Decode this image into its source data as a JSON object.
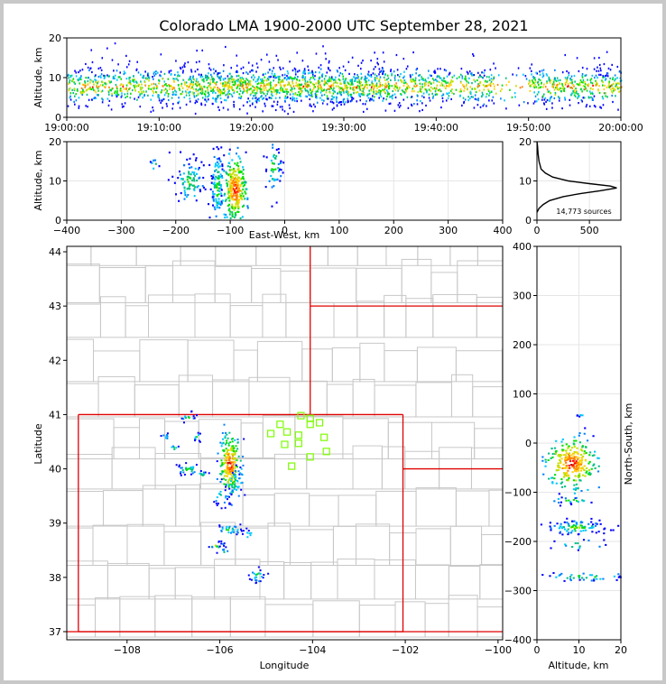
{
  "title": "Colorado LMA 1900-2000 UTC September 28, 2021",
  "colors": {
    "state_border": "#e00000",
    "county_border": "#c8c8c8",
    "station": "#7cfc00",
    "grid": "#e6e6e6"
  },
  "chart_data": [
    {
      "type": "heatmap",
      "panel": "time-altitude",
      "ylabel": "Altitude, km",
      "ylim": [
        0,
        20
      ],
      "yticks": [
        "0",
        "10",
        "20"
      ],
      "xticks": [
        "19:00:00",
        "19:10:00",
        "19:20:00",
        "19:30:00",
        "19:40:00",
        "19:50:00",
        "20:00:00"
      ],
      "xlim_minutes": [
        0,
        60
      ],
      "bands": [
        {
          "t_start": 0.0,
          "t_end": 60.0,
          "alt_center": 8,
          "alt_spread": 3.5
        }
      ]
    },
    {
      "type": "heatmap",
      "panel": "east-west-altitude",
      "xlabel": "East-West, km",
      "ylabel": "Altitude, km",
      "xlim": [
        -400,
        400
      ],
      "ylim": [
        0,
        20
      ],
      "xticks": [
        "−400",
        "−300",
        "−200",
        "−100",
        "0",
        "100",
        "200",
        "300",
        "400"
      ],
      "yticks": [
        "0",
        "10",
        "20"
      ],
      "clusters": [
        {
          "x": -240,
          "alt": 14,
          "sx": 5,
          "sa": 1,
          "n": 8
        },
        {
          "x": -175,
          "alt": 10,
          "sx": 14,
          "sa": 3,
          "n": 90
        },
        {
          "x": -125,
          "alt": 9,
          "sx": 6,
          "sa": 5,
          "n": 110
        },
        {
          "x": -92,
          "alt": 8,
          "sx": 10,
          "sa": 4,
          "n": 260
        },
        {
          "x": -22,
          "alt": 14,
          "sx": 8,
          "sa": 4,
          "n": 50
        }
      ]
    },
    {
      "type": "line",
      "panel": "altitude-histogram",
      "annotation": "14,773 sources",
      "xlim": [
        0,
        800
      ],
      "ylim": [
        0,
        20
      ],
      "xticks": [
        "0",
        "500"
      ],
      "yticks": [
        "0",
        "10",
        "20"
      ],
      "x": [
        0,
        20,
        60,
        120,
        250,
        420,
        600,
        760,
        700,
        500,
        300,
        150,
        80,
        40,
        20,
        10,
        5,
        0
      ],
      "y": [
        2,
        3,
        4,
        5,
        6,
        6.8,
        7.5,
        8.2,
        8.7,
        9.3,
        10,
        11,
        12,
        13,
        15,
        17,
        19,
        20
      ]
    },
    {
      "type": "scatter",
      "panel": "plan-view",
      "xlabel": "Longitude",
      "ylabel": "Latitude",
      "xlim": [
        -109.3,
        -99.9
      ],
      "ylim": [
        36.85,
        44.1
      ],
      "xticks": [
        {
          "v": -108,
          "label": "−108"
        },
        {
          "v": -106,
          "label": "−106"
        },
        {
          "v": -104,
          "label": "−104"
        },
        {
          "v": -102,
          "label": "−102"
        },
        {
          "v": -100,
          "label": "−100"
        }
      ],
      "yticks": [
        "37",
        "38",
        "39",
        "40",
        "41",
        "42",
        "43",
        "44"
      ],
      "clusters": [
        {
          "lon": -105.8,
          "lat": 40.1,
          "slon": 0.1,
          "slat": 0.25,
          "n": 220
        },
        {
          "lon": -105.7,
          "lat": 39.75,
          "slon": 0.12,
          "slat": 0.15,
          "n": 40
        },
        {
          "lon": -106.7,
          "lat": 40.0,
          "slon": 0.15,
          "slat": 0.05,
          "n": 30
        },
        {
          "lon": -106.0,
          "lat": 39.5,
          "slon": 0.1,
          "slat": 0.1,
          "n": 20
        },
        {
          "lon": -105.8,
          "lat": 38.9,
          "slon": 0.15,
          "slat": 0.05,
          "n": 30
        },
        {
          "lon": -105.2,
          "lat": 38.05,
          "slon": 0.1,
          "slat": 0.07,
          "n": 25
        },
        {
          "lon": -106.1,
          "lat": 38.6,
          "slon": 0.1,
          "slat": 0.05,
          "n": 14
        },
        {
          "lon": -106.7,
          "lat": 40.95,
          "slon": 0.08,
          "slat": 0.05,
          "n": 14
        },
        {
          "lon": -107.2,
          "lat": 40.6,
          "slon": 0.05,
          "slat": 0.03,
          "n": 8
        },
        {
          "lon": -106.5,
          "lat": 40.6,
          "slon": 0.05,
          "slat": 0.05,
          "n": 10
        },
        {
          "lon": -105.9,
          "lat": 38.5,
          "slon": 0.06,
          "slat": 0.04,
          "n": 8
        },
        {
          "lon": -107.0,
          "lat": 40.4,
          "slon": 0.05,
          "slat": 0.03,
          "n": 6
        },
        {
          "lon": -106.4,
          "lat": 39.9,
          "slon": 0.08,
          "slat": 0.05,
          "n": 10
        },
        {
          "lon": -105.4,
          "lat": 38.8,
          "slon": 0.06,
          "slat": 0.05,
          "n": 8
        }
      ],
      "stations": [
        {
          "lon": -104.9,
          "lat": 40.65
        },
        {
          "lon": -104.7,
          "lat": 40.82
        },
        {
          "lon": -104.55,
          "lat": 40.68
        },
        {
          "lon": -104.3,
          "lat": 40.62
        },
        {
          "lon": -104.25,
          "lat": 40.98
        },
        {
          "lon": -104.05,
          "lat": 40.93
        },
        {
          "lon": -104.05,
          "lat": 40.82
        },
        {
          "lon": -103.85,
          "lat": 40.85
        },
        {
          "lon": -104.6,
          "lat": 40.45
        },
        {
          "lon": -104.3,
          "lat": 40.47
        },
        {
          "lon": -103.75,
          "lat": 40.58
        },
        {
          "lon": -103.7,
          "lat": 40.32
        },
        {
          "lon": -104.05,
          "lat": 40.22
        },
        {
          "lon": -104.45,
          "lat": 40.05
        }
      ]
    },
    {
      "type": "heatmap",
      "panel": "altitude-north-south",
      "xlabel": "Altitude, km",
      "ylabel": "North-South, km",
      "xlim": [
        0,
        20
      ],
      "ylim": [
        -400,
        400
      ],
      "xticks": [
        "0",
        "10",
        "20"
      ],
      "yticks": [
        "−400",
        "−300",
        "−200",
        "−100",
        "0",
        "100",
        "200",
        "300",
        "400"
      ],
      "clusters": [
        {
          "alt": 8,
          "ns": -40,
          "sa": 3,
          "sn": 25,
          "n": 260
        },
        {
          "alt": 9,
          "ns": -170,
          "sa": 4,
          "sn": 8,
          "n": 90
        },
        {
          "alt": 11,
          "ns": -270,
          "sa": 6,
          "sn": 5,
          "n": 40
        },
        {
          "alt": 8,
          "ns": -115,
          "sa": 3,
          "sn": 4,
          "n": 20
        },
        {
          "alt": 10,
          "ns": -205,
          "sa": 3,
          "sn": 6,
          "n": 15
        },
        {
          "alt": 11,
          "ns": 60,
          "sa": 1,
          "sn": 2,
          "n": 6
        }
      ]
    }
  ]
}
